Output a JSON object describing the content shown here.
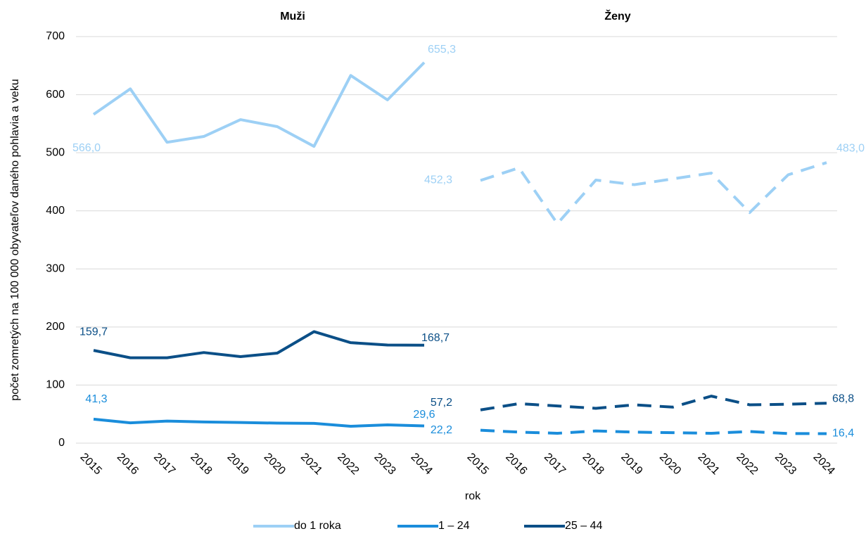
{
  "chart_data": {
    "type": "line",
    "ylabel": "počet zomretých na 100 000 obyvateľov daného pohlavia a veku",
    "xlabel": "rok",
    "ylim": [
      0,
      700
    ],
    "yticks": [
      0,
      100,
      200,
      300,
      400,
      500,
      600,
      700
    ],
    "grid": true,
    "legend": [
      {
        "name": "do 1 roka",
        "color": "#9dd0f5"
      },
      {
        "name": "1 – 24",
        "color": "#1a8ddb"
      },
      {
        "name": "25 – 44",
        "color": "#0b4f87"
      }
    ],
    "panels": [
      {
        "title": "Muži",
        "dashed": false,
        "categories": [
          "2015",
          "2016",
          "2017",
          "2018",
          "2019",
          "2020",
          "2021",
          "2022",
          "2023",
          "2024"
        ],
        "series": [
          {
            "values": [
              566.0,
              610,
              518,
              528,
              557,
              545,
              511,
              633,
              591,
              655.3
            ],
            "value_labels": [
              "566,0",
              null,
              null,
              null,
              null,
              null,
              null,
              null,
              null,
              "655,3"
            ]
          },
          {
            "values": [
              41.3,
              35,
              38,
              36.5,
              35.5,
              34.5,
              34,
              29,
              31.5,
              29.6
            ],
            "value_labels": [
              "41,3",
              null,
              null,
              null,
              null,
              null,
              null,
              null,
              null,
              "29,6"
            ]
          },
          {
            "values": [
              159.7,
              147,
              147,
              156,
              149,
              155,
              192,
              173,
              169,
              168.7
            ],
            "value_labels": [
              "159,7",
              null,
              null,
              null,
              null,
              null,
              null,
              null,
              null,
              "168,7"
            ]
          }
        ]
      },
      {
        "title": "Ženy",
        "dashed": true,
        "categories": [
          "2015",
          "2016",
          "2017",
          "2018",
          "2019",
          "2020",
          "2021",
          "2022",
          "2023",
          "2024"
        ],
        "series": [
          {
            "values": [
              452.3,
              474,
              378,
              453,
              445,
              455,
              465,
              397,
              462,
              483.0
            ],
            "value_labels": [
              "452,3",
              null,
              null,
              null,
              null,
              null,
              null,
              null,
              null,
              "483,0"
            ]
          },
          {
            "values": [
              22.2,
              19,
              17,
              21,
              19,
              18,
              17,
              20,
              16.5,
              16.4
            ],
            "value_labels": [
              "22,2",
              null,
              null,
              null,
              null,
              null,
              null,
              null,
              null,
              "16,4"
            ]
          },
          {
            "values": [
              57.2,
              68,
              64,
              60,
              66,
              62,
              81,
              66,
              67,
              68.8
            ],
            "value_labels": [
              "57,2",
              null,
              null,
              null,
              null,
              null,
              null,
              null,
              null,
              "68,8"
            ]
          }
        ]
      }
    ]
  }
}
